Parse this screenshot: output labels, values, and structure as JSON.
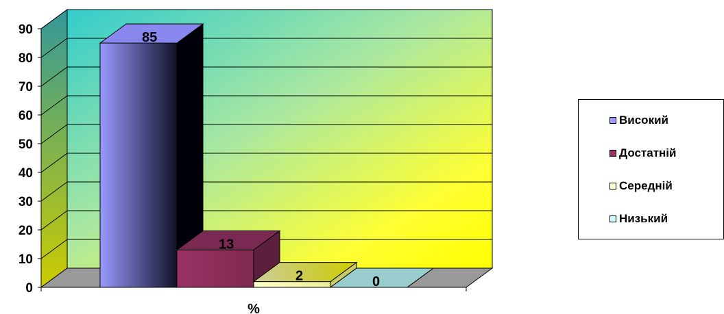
{
  "chart_data": {
    "type": "bar",
    "categories": [
      "%"
    ],
    "series": [
      {
        "name": "Високий",
        "values": [
          85
        ],
        "color": "#9999ff"
      },
      {
        "name": "Достатній",
        "values": [
          13
        ],
        "color": "#993366"
      },
      {
        "name": "Середній",
        "values": [
          2
        ],
        "color": "#ffffcc"
      },
      {
        "name": "Низький",
        "values": [
          0
        ],
        "color": "#ccffff"
      }
    ],
    "xlabel": "%",
    "ylim": [
      0,
      90
    ],
    "yticks": [
      "0",
      "10",
      "20",
      "30",
      "40",
      "50",
      "60",
      "70",
      "80",
      "90"
    ],
    "grid": true,
    "legend_position": "right",
    "three_d": true,
    "data_labels": [
      "85",
      "13",
      "2",
      "0"
    ]
  }
}
